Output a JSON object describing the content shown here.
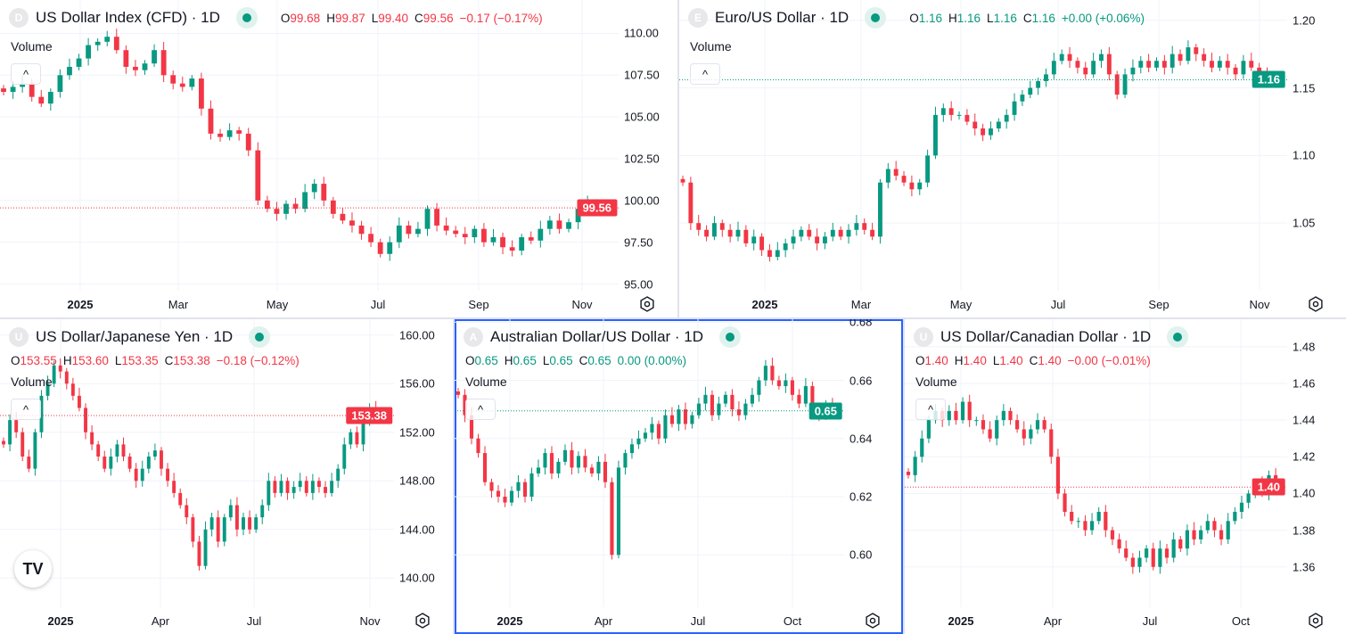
{
  "colors": {
    "up": "#089981",
    "down": "#f23645",
    "grid": "#f0f3fa",
    "active_border": "#2962ff"
  },
  "common": {
    "volume_label": "Volume",
    "collapse_icon": "chevron-up-icon",
    "settings_icon": "gear-icon",
    "tv_logo": "TV"
  },
  "chart_data": [
    {
      "type": "candlestick",
      "symbol_letter": "D",
      "title": "US Dollar Index (CFD) · 1D",
      "ohlc": {
        "o": "99.68",
        "h": "99.87",
        "l": "99.40",
        "c": "99.56",
        "chg": "−0.17 (−0.17%)",
        "dir": "down"
      },
      "last_price": "99.56",
      "last_value": 99.56,
      "y_ticks": [
        "110.00",
        "107.50",
        "105.00",
        "102.50",
        "100.00",
        "97.50",
        "95.00"
      ],
      "ylim": [
        94.6,
        112.0
      ],
      "x_ticks": [
        "2025",
        "Mar",
        "May",
        "Jul",
        "Sep",
        "Nov"
      ],
      "closes": [
        106.5,
        106.8,
        107.0,
        106.2,
        105.8,
        106.5,
        107.5,
        108.0,
        108.5,
        109.3,
        109.5,
        109.8,
        109.0,
        108.0,
        107.8,
        108.2,
        109.0,
        107.5,
        107.0,
        106.8,
        107.3,
        105.5,
        104.0,
        103.8,
        104.2,
        104.0,
        103.0,
        100.0,
        99.5,
        99.2,
        99.8,
        99.5,
        100.5,
        101.0,
        100.0,
        99.2,
        98.8,
        98.5,
        98.0,
        97.5,
        96.8,
        97.5,
        98.5,
        98.0,
        98.3,
        99.5,
        98.5,
        98.2,
        98.0,
        97.8,
        98.3,
        97.5,
        97.8,
        97.2,
        97.0,
        97.8,
        97.6,
        98.3,
        98.8,
        98.3,
        98.7,
        99.5,
        99.8,
        99.56
      ]
    },
    {
      "type": "candlestick",
      "symbol_letter": "E",
      "title": "Euro/US Dollar · 1D",
      "ohlc": {
        "o": "1.16",
        "h": "1.16",
        "l": "1.16",
        "c": "1.16",
        "chg": "+0.00 (+0.06%)",
        "dir": "up"
      },
      "last_price": "1.16",
      "last_value": 1.156,
      "y_ticks": [
        "1.20",
        "1.15",
        "1.10",
        "1.05"
      ],
      "ylim": [
        1.0,
        1.215
      ],
      "x_ticks": [
        "2025",
        "Mar",
        "May",
        "Jul",
        "Sep",
        "Nov"
      ],
      "closes": [
        1.08,
        1.05,
        1.045,
        1.04,
        1.05,
        1.045,
        1.04,
        1.045,
        1.035,
        1.04,
        1.03,
        1.025,
        1.03,
        1.035,
        1.04,
        1.045,
        1.04,
        1.035,
        1.04,
        1.045,
        1.04,
        1.045,
        1.05,
        1.045,
        1.04,
        1.08,
        1.09,
        1.085,
        1.08,
        1.075,
        1.08,
        1.1,
        1.13,
        1.135,
        1.13,
        1.13,
        1.125,
        1.12,
        1.115,
        1.12,
        1.125,
        1.13,
        1.14,
        1.145,
        1.15,
        1.155,
        1.16,
        1.17,
        1.175,
        1.17,
        1.165,
        1.16,
        1.17,
        1.175,
        1.16,
        1.145,
        1.16,
        1.165,
        1.17,
        1.165,
        1.17,
        1.165,
        1.175,
        1.17,
        1.18,
        1.175,
        1.17,
        1.165,
        1.17,
        1.165,
        1.16,
        1.17,
        1.165,
        1.16,
        1.158,
        1.156
      ]
    },
    {
      "type": "candlestick",
      "symbol_letter": "U",
      "title": "US Dollar/Japanese Yen · 1D",
      "ohlc": {
        "o": "153.55",
        "h": "153.60",
        "l": "153.35",
        "c": "153.38",
        "chg": "−0.18 (−0.12%)",
        "dir": "down"
      },
      "last_price": "153.38",
      "last_value": 153.38,
      "y_ticks": [
        "160.00",
        "156.00",
        "152.00",
        "148.00",
        "144.00",
        "140.00"
      ],
      "ylim": [
        137.6,
        161.3
      ],
      "x_ticks": [
        "2025",
        "Apr",
        "Jul",
        "Nov"
      ],
      "closes": [
        151,
        153,
        152,
        150,
        149,
        152,
        155,
        156,
        157.5,
        157,
        156,
        155,
        154,
        152,
        151,
        150,
        149,
        150,
        151,
        150,
        149,
        148,
        149,
        150,
        150.5,
        149,
        148,
        147,
        146,
        145,
        143,
        141,
        144,
        145,
        143,
        145,
        146,
        144,
        145,
        144,
        145,
        146,
        148,
        147,
        148,
        147,
        147.5,
        148,
        147,
        148,
        147.5,
        147,
        148,
        149,
        151,
        152,
        151,
        153,
        154,
        153.5,
        153.38
      ]
    },
    {
      "type": "candlestick",
      "symbol_letter": "A",
      "title": "Australian Dollar/US Dollar · 1D",
      "ohlc": {
        "o": "0.65",
        "h": "0.65",
        "l": "0.65",
        "c": "0.65",
        "chg": "0.00 (0.00%)",
        "dir": "up"
      },
      "last_price": "0.65",
      "last_value": 0.6495,
      "y_ticks": [
        "0.68",
        "0.66",
        "0.64",
        "0.62",
        "0.60"
      ],
      "ylim": [
        0.582,
        0.681
      ],
      "x_ticks": [
        "2025",
        "Apr",
        "Jul",
        "Oct"
      ],
      "active": true,
      "closes": [
        0.655,
        0.648,
        0.64,
        0.635,
        0.625,
        0.622,
        0.62,
        0.618,
        0.622,
        0.625,
        0.62,
        0.628,
        0.63,
        0.635,
        0.628,
        0.632,
        0.636,
        0.63,
        0.634,
        0.63,
        0.628,
        0.632,
        0.625,
        0.6,
        0.63,
        0.635,
        0.638,
        0.64,
        0.642,
        0.645,
        0.64,
        0.648,
        0.645,
        0.65,
        0.645,
        0.648,
        0.652,
        0.655,
        0.648,
        0.652,
        0.655,
        0.65,
        0.648,
        0.652,
        0.655,
        0.66,
        0.665,
        0.66,
        0.658,
        0.66,
        0.655,
        0.652,
        0.658,
        0.65,
        0.648,
        0.652,
        0.6495
      ]
    },
    {
      "type": "candlestick",
      "symbol_letter": "U",
      "title": "US Dollar/Canadian Dollar · 1D",
      "ohlc": {
        "o": "1.40",
        "h": "1.40",
        "l": "1.40",
        "c": "1.40",
        "chg": "−0.00 (−0.01%)",
        "dir": "down"
      },
      "last_price": "1.40",
      "last_value": 1.4035,
      "y_ticks": [
        "1.48",
        "1.46",
        "1.44",
        "1.42",
        "1.40",
        "1.38",
        "1.36"
      ],
      "ylim": [
        1.338,
        1.495
      ],
      "x_ticks": [
        "2025",
        "Apr",
        "Jul",
        "Oct"
      ],
      "closes": [
        1.41,
        1.42,
        1.43,
        1.44,
        1.445,
        1.44,
        1.445,
        1.44,
        1.45,
        1.44,
        1.44,
        1.435,
        1.43,
        1.44,
        1.445,
        1.44,
        1.435,
        1.43,
        1.435,
        1.44,
        1.435,
        1.42,
        1.4,
        1.39,
        1.385,
        1.385,
        1.38,
        1.385,
        1.39,
        1.38,
        1.375,
        1.37,
        1.365,
        1.36,
        1.365,
        1.37,
        1.36,
        1.37,
        1.365,
        1.375,
        1.37,
        1.38,
        1.375,
        1.38,
        1.385,
        1.38,
        1.375,
        1.385,
        1.39,
        1.395,
        1.4,
        1.405,
        1.4,
        1.41,
        1.4035
      ]
    }
  ]
}
